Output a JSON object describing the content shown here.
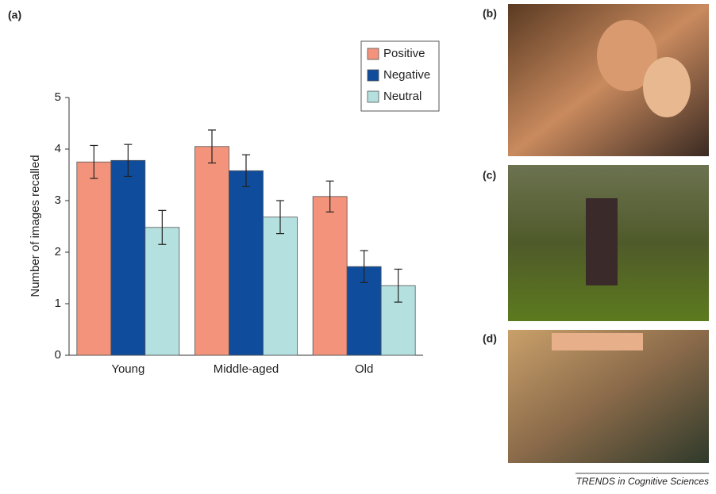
{
  "panel_labels": {
    "a": "(a)",
    "b": "(b)",
    "c": "(c)",
    "d": "(d)"
  },
  "footer": "TRENDS in Cognitive Sciences",
  "chart_data": {
    "type": "bar",
    "y_label": "Number of images recalled",
    "categories": [
      "Young",
      "Middle-aged",
      "Old"
    ],
    "series": [
      {
        "name": "Positive",
        "color": "#f4937b",
        "values": [
          3.75,
          4.05,
          3.08
        ],
        "errors": [
          0.32,
          0.32,
          0.3
        ]
      },
      {
        "name": "Negative",
        "color": "#0f4c9c",
        "values": [
          3.78,
          3.58,
          1.72
        ],
        "errors": [
          0.31,
          0.31,
          0.31
        ]
      },
      {
        "name": "Neutral",
        "color": "#b4e0df",
        "values": [
          2.48,
          2.68,
          1.35
        ],
        "errors": [
          0.33,
          0.32,
          0.32
        ]
      }
    ],
    "ylim": [
      0,
      5
    ],
    "yticks": [
      0,
      1,
      2,
      3,
      4,
      5
    ],
    "legend": "top-right"
  }
}
